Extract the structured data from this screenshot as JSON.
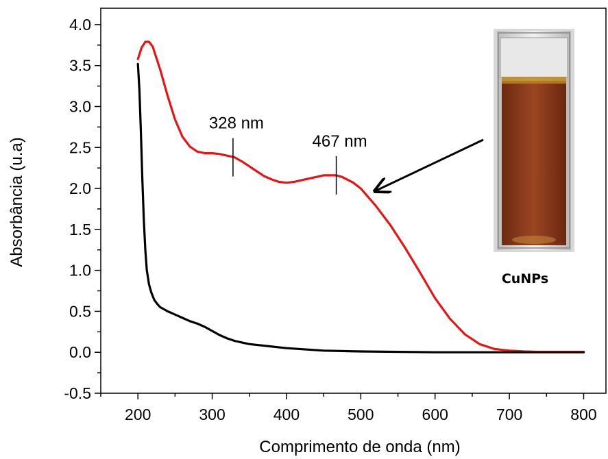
{
  "chart_data": {
    "type": "line",
    "title": "",
    "xlabel": "Comprimento de onda (nm)",
    "ylabel": "Absorbância (u.a)",
    "xlim": [
      150,
      830
    ],
    "ylim": [
      -0.5,
      4.2
    ],
    "x_ticks": [
      200,
      300,
      400,
      500,
      600,
      700,
      800
    ],
    "x_tick_labels": [
      "200",
      "300",
      "400",
      "500",
      "600",
      "700",
      "800"
    ],
    "y_ticks": [
      -0.5,
      0.0,
      0.5,
      1.0,
      1.5,
      2.0,
      2.5,
      3.0,
      3.5,
      4.0
    ],
    "y_tick_labels": [
      "-0.5",
      "0.0",
      "0.5",
      "1.0",
      "1.5",
      "2.0",
      "2.5",
      "3.0",
      "3.5",
      "4.0"
    ],
    "grid": false,
    "series": [
      {
        "color": "#e81414",
        "x": [
          200,
          205,
          210,
          215,
          220,
          230,
          240,
          250,
          260,
          270,
          280,
          290,
          300,
          310,
          320,
          330,
          340,
          350,
          360,
          370,
          380,
          390,
          400,
          410,
          420,
          430,
          440,
          450,
          460,
          467,
          475,
          490,
          500,
          520,
          540,
          560,
          580,
          600,
          620,
          640,
          660,
          680,
          700,
          720,
          740,
          760,
          780,
          800
        ],
        "y": [
          3.58,
          3.72,
          3.79,
          3.79,
          3.73,
          3.45,
          3.13,
          2.84,
          2.63,
          2.51,
          2.45,
          2.43,
          2.43,
          2.42,
          2.4,
          2.38,
          2.33,
          2.27,
          2.21,
          2.15,
          2.11,
          2.08,
          2.07,
          2.08,
          2.1,
          2.12,
          2.14,
          2.16,
          2.16,
          2.16,
          2.14,
          2.07,
          2.0,
          1.79,
          1.55,
          1.27,
          0.97,
          0.66,
          0.41,
          0.22,
          0.1,
          0.04,
          0.02,
          0.01,
          0.005,
          0.005,
          0.005,
          0.005
        ]
      },
      {
        "color": "#000000",
        "x": [
          200,
          202,
          204,
          206,
          208,
          210,
          212,
          215,
          218,
          222,
          226,
          230,
          240,
          250,
          260,
          270,
          280,
          290,
          300,
          310,
          320,
          330,
          340,
          350,
          370,
          400,
          450,
          500,
          600,
          700,
          800
        ],
        "y": [
          3.52,
          3.2,
          2.7,
          2.1,
          1.6,
          1.25,
          1.0,
          0.83,
          0.73,
          0.64,
          0.59,
          0.55,
          0.5,
          0.46,
          0.42,
          0.38,
          0.35,
          0.31,
          0.26,
          0.21,
          0.17,
          0.14,
          0.12,
          0.1,
          0.08,
          0.05,
          0.02,
          0.01,
          0.0,
          0.0,
          0.0
        ]
      }
    ],
    "annotations": [
      {
        "text": "328 nm",
        "x": 328,
        "y": 2.38
      },
      {
        "text": "467 nm",
        "x": 467,
        "y": 2.16
      }
    ],
    "inset": {
      "label": "CuNPs",
      "liquid_color": "#8a3a1c"
    }
  }
}
